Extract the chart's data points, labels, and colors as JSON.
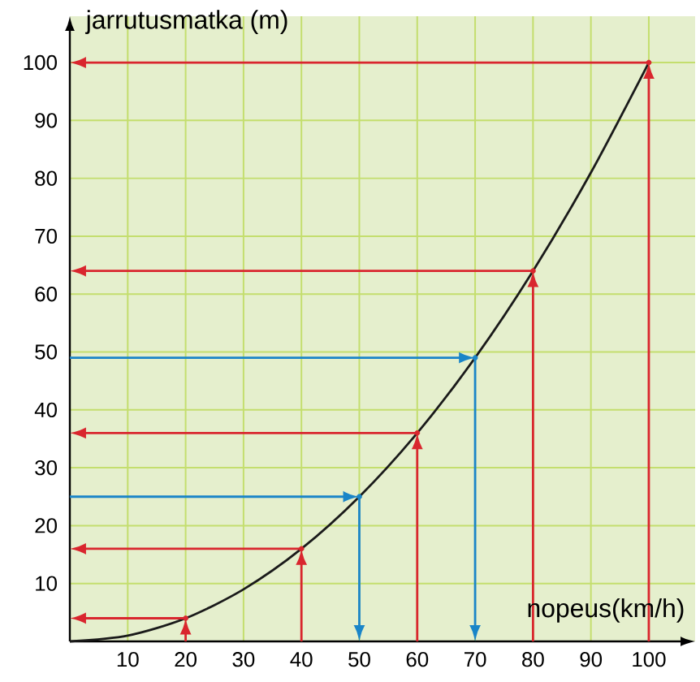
{
  "chart_data": {
    "type": "line",
    "xlabel": "nopeus(km/h)",
    "ylabel": "jarrutusmatka (m)",
    "xlim": [
      0,
      108
    ],
    "ylim": [
      0,
      108
    ],
    "xticks": [
      10,
      20,
      30,
      40,
      50,
      60,
      70,
      80,
      90,
      100
    ],
    "yticks": [
      10,
      20,
      30,
      40,
      50,
      60,
      70,
      80,
      90,
      100
    ],
    "grid": true,
    "marker": "none",
    "line_style": "solid",
    "series": [
      {
        "color": "#1a1a1a",
        "x": [
          0,
          10,
          20,
          30,
          40,
          50,
          60,
          70,
          80,
          90,
          100
        ],
        "values": [
          0,
          1,
          4,
          9,
          16,
          25,
          36,
          49,
          64,
          81,
          100
        ]
      },
      {
        "type": "scatter",
        "color": "#d9262e",
        "x": [
          20,
          40,
          60,
          80,
          100
        ],
        "values": [
          4,
          16,
          36,
          64,
          100
        ]
      },
      {
        "type": "scatter",
        "color": "#1a85c8",
        "x": [
          50,
          70
        ],
        "values": [
          25,
          49
        ]
      }
    ]
  }
}
